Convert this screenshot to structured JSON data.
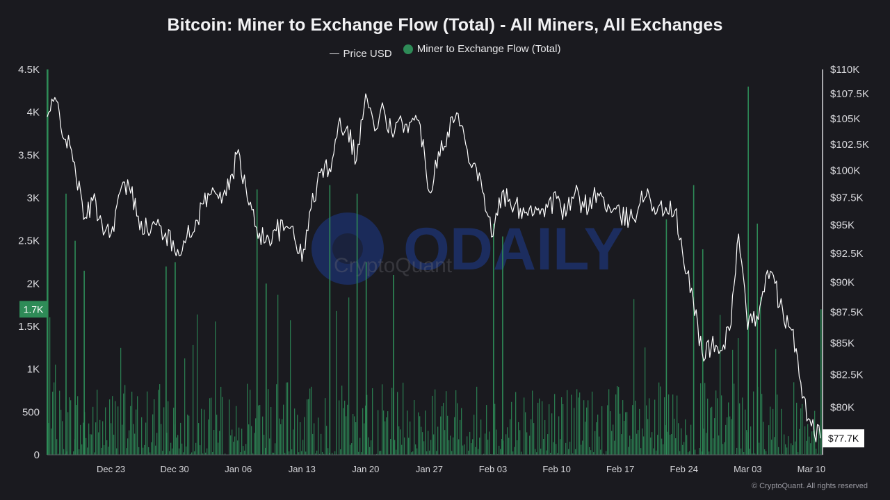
{
  "chart_data": {
    "type": "bar+line",
    "title": "Bitcoin: Miner to Exchange Flow (Total) - All Miners, All Exchanges",
    "legend": [
      "Price USD",
      "Miner to Exchange Flow (Total)"
    ],
    "legend_placement": "top-center",
    "colors": {
      "flow": "#2e8b57",
      "price": "#ffffff",
      "background": "#1a1a1f",
      "watermark": "#1e3a8a"
    },
    "x_tick_labels": [
      "Dec 23",
      "Dec 30",
      "Jan 06",
      "Jan 13",
      "Jan 20",
      "Jan 27",
      "Feb 03",
      "Feb 10",
      "Feb 17",
      "Feb 24",
      "Mar 03",
      "Mar 10"
    ],
    "x_range": [
      "Dec 16",
      "Mar 11"
    ],
    "y_left_ticks": [
      "0",
      "500",
      "1K",
      "1.5K",
      "2K",
      "2.5K",
      "3K",
      "3.5K",
      "4K",
      "4.5K"
    ],
    "y_left_range": [
      0,
      4500
    ],
    "y_right_ticks": [
      "$80K",
      "$82.5K",
      "$85K",
      "$87.5K",
      "$90K",
      "$92.5K",
      "$95K",
      "$97.5K",
      "$100K",
      "$102.5K",
      "$105K",
      "$107.5K",
      "$110K"
    ],
    "y_right_range": [
      76500,
      110000
    ],
    "y_right_scale": "log",
    "grid": false,
    "current_flow_label": "1.7K",
    "current_flow_value": 1700,
    "current_price_label": "$77.7K",
    "current_price_value": 77700,
    "price_series": [
      {
        "date": "Dec 16",
        "value": 105200
      },
      {
        "date": "Dec 17",
        "value": 106800
      },
      {
        "date": "Dec 18",
        "value": 103000
      },
      {
        "date": "Dec 19",
        "value": 100800
      },
      {
        "date": "Dec 20",
        "value": 95500
      },
      {
        "date": "Dec 21",
        "value": 97200
      },
      {
        "date": "Dec 22",
        "value": 95200
      },
      {
        "date": "Dec 23",
        "value": 94200
      },
      {
        "date": "Dec 24",
        "value": 98000
      },
      {
        "date": "Dec 25",
        "value": 98500
      },
      {
        "date": "Dec 26",
        "value": 95800
      },
      {
        "date": "Dec 27",
        "value": 94500
      },
      {
        "date": "Dec 28",
        "value": 95000
      },
      {
        "date": "Dec 29",
        "value": 94300
      },
      {
        "date": "Dec 30",
        "value": 92700
      },
      {
        "date": "Dec 31",
        "value": 93600
      },
      {
        "date": "Jan 01",
        "value": 94300
      },
      {
        "date": "Jan 02",
        "value": 96900
      },
      {
        "date": "Jan 03",
        "value": 97800
      },
      {
        "date": "Jan 04",
        "value": 98000
      },
      {
        "date": "Jan 05",
        "value": 98200
      },
      {
        "date": "Jan 06",
        "value": 102000
      },
      {
        "date": "Jan 07",
        "value": 97300
      },
      {
        "date": "Jan 08",
        "value": 94800
      },
      {
        "date": "Jan 09",
        "value": 93500
      },
      {
        "date": "Jan 10",
        "value": 94600
      },
      {
        "date": "Jan 11",
        "value": 94500
      },
      {
        "date": "Jan 12",
        "value": 94900
      },
      {
        "date": "Jan 13",
        "value": 91800
      },
      {
        "date": "Jan 14",
        "value": 96500
      },
      {
        "date": "Jan 15",
        "value": 99800
      },
      {
        "date": "Jan 16",
        "value": 100200
      },
      {
        "date": "Jan 17",
        "value": 104500
      },
      {
        "date": "Jan 18",
        "value": 104300
      },
      {
        "date": "Jan 19",
        "value": 101000
      },
      {
        "date": "Jan 20",
        "value": 107500
      },
      {
        "date": "Jan 21",
        "value": 103800
      },
      {
        "date": "Jan 22",
        "value": 106000
      },
      {
        "date": "Jan 23",
        "value": 103200
      },
      {
        "date": "Jan 24",
        "value": 104700
      },
      {
        "date": "Jan 25",
        "value": 104700
      },
      {
        "date": "Jan 26",
        "value": 104400
      },
      {
        "date": "Jan 27",
        "value": 98000
      },
      {
        "date": "Jan 28",
        "value": 101800
      },
      {
        "date": "Jan 29",
        "value": 103700
      },
      {
        "date": "Jan 30",
        "value": 105600
      },
      {
        "date": "Jan 31",
        "value": 102500
      },
      {
        "date": "Feb 01",
        "value": 100700
      },
      {
        "date": "Feb 02",
        "value": 97800
      },
      {
        "date": "Feb 03",
        "value": 94000
      },
      {
        "date": "Feb 04",
        "value": 98000
      },
      {
        "date": "Feb 05",
        "value": 96600
      },
      {
        "date": "Feb 06",
        "value": 96500
      },
      {
        "date": "Feb 07",
        "value": 96500
      },
      {
        "date": "Feb 08",
        "value": 96500
      },
      {
        "date": "Feb 09",
        "value": 96600
      },
      {
        "date": "Feb 10",
        "value": 97400
      },
      {
        "date": "Feb 11",
        "value": 95800
      },
      {
        "date": "Feb 12",
        "value": 97900
      },
      {
        "date": "Feb 13",
        "value": 96600
      },
      {
        "date": "Feb 14",
        "value": 97500
      },
      {
        "date": "Feb 15",
        "value": 97600
      },
      {
        "date": "Feb 16",
        "value": 96100
      },
      {
        "date": "Feb 17",
        "value": 95800
      },
      {
        "date": "Feb 18",
        "value": 95500
      },
      {
        "date": "Feb 19",
        "value": 96600
      },
      {
        "date": "Feb 20",
        "value": 98300
      },
      {
        "date": "Feb 21",
        "value": 96100
      },
      {
        "date": "Feb 22",
        "value": 96600
      },
      {
        "date": "Feb 23",
        "value": 96300
      },
      {
        "date": "Feb 24",
        "value": 91500
      },
      {
        "date": "Feb 25",
        "value": 88700
      },
      {
        "date": "Feb 26",
        "value": 84200
      },
      {
        "date": "Feb 27",
        "value": 84700
      },
      {
        "date": "Feb 28",
        "value": 84400
      },
      {
        "date": "Mar 01",
        "value": 86000
      },
      {
        "date": "Mar 02",
        "value": 94200
      },
      {
        "date": "Mar 03",
        "value": 86100
      },
      {
        "date": "Mar 04",
        "value": 87200
      },
      {
        "date": "Mar 05",
        "value": 90600
      },
      {
        "date": "Mar 06",
        "value": 89900
      },
      {
        "date": "Mar 07",
        "value": 86700
      },
      {
        "date": "Mar 08",
        "value": 86100
      },
      {
        "date": "Mar 09",
        "value": 80700
      },
      {
        "date": "Mar 10",
        "value": 78600
      },
      {
        "date": "Mar 11",
        "value": 77700
      }
    ],
    "flow_spikes": [
      {
        "date": "Dec 16",
        "value": 4500
      },
      {
        "date": "Dec 18",
        "value": 3050
      },
      {
        "date": "Dec 19",
        "value": 2500
      },
      {
        "date": "Dec 20",
        "value": 2150
      },
      {
        "date": "Dec 29",
        "value": 2200
      },
      {
        "date": "Dec 30",
        "value": 2250
      },
      {
        "date": "Jan 08",
        "value": 3100
      },
      {
        "date": "Jan 09",
        "value": 2000
      },
      {
        "date": "Jan 16",
        "value": 3150
      },
      {
        "date": "Jan 19",
        "value": 3050
      },
      {
        "date": "Jan 20",
        "value": 2250
      },
      {
        "date": "Jan 23",
        "value": 2100
      },
      {
        "date": "Feb 03",
        "value": 2700
      },
      {
        "date": "Feb 04",
        "value": 2550
      },
      {
        "date": "Feb 22",
        "value": 2750
      },
      {
        "date": "Feb 25",
        "value": 3150
      },
      {
        "date": "Feb 26",
        "value": 2400
      },
      {
        "date": "Mar 03",
        "value": 4300
      },
      {
        "date": "Mar 04",
        "value": 2700
      },
      {
        "date": "Mar 11",
        "value": 1700
      }
    ],
    "flow_typical_range": [
      0,
      1000
    ]
  },
  "watermark_text": "ODAILY",
  "watermark_sub": "CryptoQuant",
  "credit": "© CryptoQuant. All rights reserved"
}
